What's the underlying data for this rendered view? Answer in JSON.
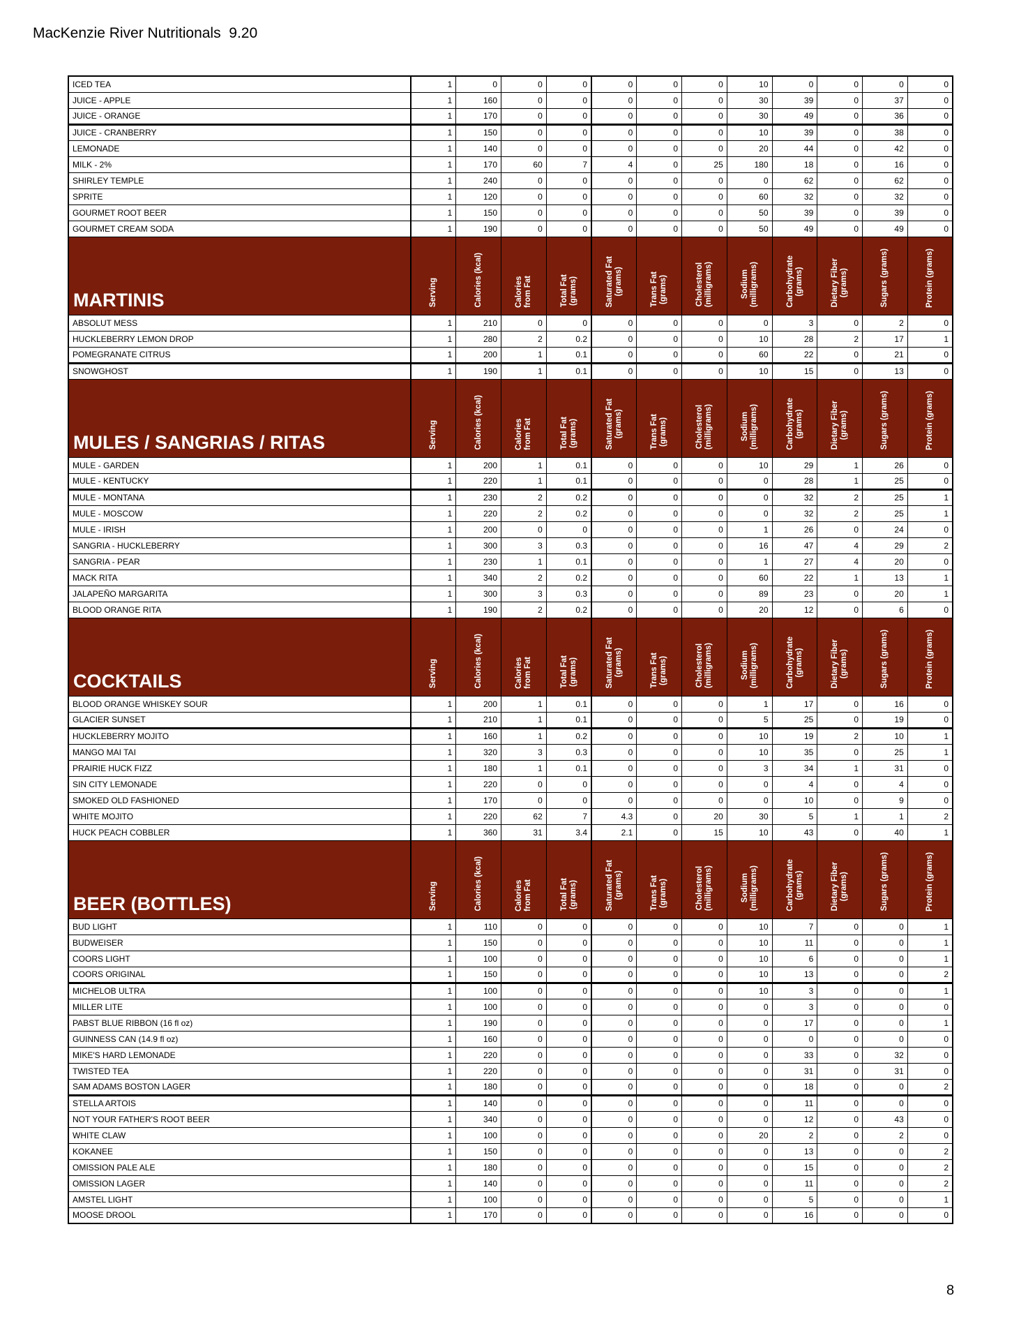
{
  "page": {
    "title": "MacKenzie River Nutritionals  9.20",
    "page_number": "8",
    "accent_color": "#7a1d0b"
  },
  "table": {
    "columns": [
      "Serving",
      "Calories (kcal)",
      "Calories\nfrom Fat",
      "Total Fat\n(grams)",
      "Saturated Fat\n(grams)",
      "Trans Fat\n(grams)",
      "Cholesterol\n(milligrams)",
      "Sodium\n(milligrams)",
      "Carbohydrate\n(grams)",
      "Dietary Fiber\n(grams)",
      "Sugars (grams)",
      "Protein (grams)"
    ],
    "sections": [
      {
        "title": "",
        "rows": [
          {
            "name": "ICED TEA",
            "values": [
              1,
              0,
              0,
              0,
              0,
              0,
              0,
              10,
              0,
              0,
              0,
              0
            ]
          },
          {
            "name": "JUICE - APPLE",
            "values": [
              1,
              160,
              0,
              0,
              0,
              0,
              0,
              30,
              39,
              0,
              37,
              0
            ]
          },
          {
            "name": "JUICE - ORANGE",
            "values": [
              1,
              170,
              0,
              0,
              0,
              0,
              0,
              30,
              49,
              0,
              36,
              0
            ],
            "thick_bottom": true
          },
          {
            "name": "JUICE - CRANBERRY",
            "values": [
              1,
              150,
              0,
              0,
              0,
              0,
              0,
              10,
              39,
              0,
              38,
              0
            ]
          },
          {
            "name": "LEMONADE",
            "values": [
              1,
              140,
              0,
              0,
              0,
              0,
              0,
              20,
              44,
              0,
              42,
              0
            ]
          },
          {
            "name": "MILK - 2%",
            "values": [
              1,
              170,
              60,
              7,
              4,
              0,
              25,
              180,
              18,
              0,
              16,
              0
            ]
          },
          {
            "name": "SHIRLEY TEMPLE",
            "values": [
              1,
              240,
              0,
              0,
              0,
              0,
              0,
              0,
              62,
              0,
              62,
              0
            ]
          },
          {
            "name": "SPRITE",
            "values": [
              1,
              120,
              0,
              0,
              0,
              0,
              0,
              60,
              32,
              0,
              32,
              0
            ]
          },
          {
            "name": "GOURMET ROOT BEER",
            "values": [
              1,
              150,
              0,
              0,
              0,
              0,
              0,
              50,
              39,
              0,
              39,
              0
            ]
          },
          {
            "name": "GOURMET  CREAM SODA",
            "values": [
              1,
              190,
              0,
              0,
              0,
              0,
              0,
              50,
              49,
              0,
              49,
              0
            ]
          }
        ]
      },
      {
        "title": "MARTINIS",
        "rows": [
          {
            "name": "ABSOLUT MESS",
            "values": [
              1,
              210,
              0,
              0,
              0,
              0,
              0,
              0,
              3,
              0,
              2,
              0
            ]
          },
          {
            "name": "HUCKLEBERRY LEMON DROP",
            "values": [
              1,
              280,
              2,
              0.2,
              0,
              0,
              0,
              10,
              28,
              2,
              17,
              1
            ]
          },
          {
            "name": "POMEGRANATE CITRUS",
            "values": [
              1,
              200,
              1,
              0.1,
              0,
              0,
              0,
              60,
              22,
              0,
              21,
              0
            ],
            "thick_bottom": true
          },
          {
            "name": "SNOWGHOST",
            "values": [
              1,
              190,
              1,
              0.1,
              0,
              0,
              0,
              10,
              15,
              0,
              13,
              0
            ]
          }
        ]
      },
      {
        "title": "MULES / SANGRIAS / RITAS",
        "rows": [
          {
            "name": "MULE - GARDEN",
            "values": [
              1,
              200,
              1,
              0.1,
              0,
              0,
              0,
              10,
              29,
              1,
              26,
              0
            ]
          },
          {
            "name": "MULE - KENTUCKY",
            "values": [
              1,
              220,
              1,
              0.1,
              0,
              0,
              0,
              0,
              28,
              1,
              25,
              0
            ],
            "thick_bottom": true
          },
          {
            "name": "MULE - MONTANA",
            "values": [
              1,
              230,
              2,
              0.2,
              0,
              0,
              0,
              0,
              32,
              2,
              25,
              1
            ]
          },
          {
            "name": "MULE - MOSCOW",
            "values": [
              1,
              220,
              2,
              0.2,
              0,
              0,
              0,
              0,
              32,
              2,
              25,
              1
            ]
          },
          {
            "name": "MULE - IRISH",
            "values": [
              1,
              200,
              0,
              0,
              0,
              0,
              0,
              1,
              26,
              0,
              24,
              0
            ]
          },
          {
            "name": "SANGRIA - HUCKLEBERRY",
            "values": [
              1,
              300,
              3,
              0.3,
              0,
              0,
              0,
              16,
              47,
              4,
              29,
              2
            ]
          },
          {
            "name": "SANGRIA - PEAR",
            "values": [
              1,
              230,
              1,
              0.1,
              0,
              0,
              0,
              1,
              27,
              4,
              20,
              0
            ]
          },
          {
            "name": "MACK RITA",
            "values": [
              1,
              340,
              2,
              0.2,
              0,
              0,
              0,
              60,
              22,
              1,
              13,
              1
            ]
          },
          {
            "name": "JALAPEÑO MARGARITA",
            "values": [
              1,
              300,
              3,
              0.3,
              0,
              0,
              0,
              89,
              23,
              0,
              20,
              1
            ]
          },
          {
            "name": "BLOOD ORANGE RITA",
            "values": [
              1,
              190,
              2,
              0.2,
              0,
              0,
              0,
              20,
              12,
              0,
              6,
              0
            ]
          }
        ]
      },
      {
        "title": "COCKTAILS",
        "rows": [
          {
            "name": "BLOOD ORANGE WHISKEY SOUR",
            "values": [
              1,
              200,
              1,
              0.1,
              0,
              0,
              0,
              1,
              17,
              0,
              16,
              0
            ]
          },
          {
            "name": "GLACIER SUNSET",
            "values": [
              1,
              210,
              1,
              0.1,
              0,
              0,
              0,
              5,
              25,
              0,
              19,
              0
            ],
            "thick_bottom": true
          },
          {
            "name": "HUCKLEBERRY MOJITO",
            "values": [
              1,
              160,
              1,
              0.2,
              0,
              0,
              0,
              10,
              19,
              2,
              10,
              1
            ]
          },
          {
            "name": "MANGO MAI TAI",
            "values": [
              1,
              320,
              3,
              0.3,
              0,
              0,
              0,
              10,
              35,
              0,
              25,
              1
            ]
          },
          {
            "name": "PRAIRIE HUCK FIZZ",
            "values": [
              1,
              180,
              1,
              0.1,
              0,
              0,
              0,
              3,
              34,
              1,
              31,
              0
            ]
          },
          {
            "name": "SIN CITY LEMONADE",
            "values": [
              1,
              220,
              0,
              0,
              0,
              0,
              0,
              0,
              4,
              0,
              4,
              0
            ]
          },
          {
            "name": "SMOKED OLD FASHIONED",
            "values": [
              1,
              170,
              0,
              0,
              0,
              0,
              0,
              0,
              10,
              0,
              9,
              0
            ]
          },
          {
            "name": "WHITE MOJITO",
            "values": [
              1,
              220,
              62,
              7,
              4.3,
              0,
              20,
              30,
              5,
              1,
              1,
              2
            ]
          },
          {
            "name": "HUCK PEACH COBBLER",
            "values": [
              1,
              360,
              31,
              3.4,
              2.1,
              0,
              15,
              10,
              43,
              0,
              40,
              1
            ]
          }
        ]
      },
      {
        "title": "BEER (BOTTLES)",
        "rows": [
          {
            "name": "BUD LIGHT",
            "values": [
              1,
              110,
              0,
              0,
              0,
              0,
              0,
              10,
              7,
              0,
              0,
              1
            ]
          },
          {
            "name": "BUDWEISER",
            "values": [
              1,
              150,
              0,
              0,
              0,
              0,
              0,
              10,
              11,
              0,
              0,
              1
            ]
          },
          {
            "name": "COORS LIGHT",
            "values": [
              1,
              100,
              0,
              0,
              0,
              0,
              0,
              10,
              6,
              0,
              0,
              1
            ]
          },
          {
            "name": "COORS ORIGINAL",
            "values": [
              1,
              150,
              0,
              0,
              0,
              0,
              0,
              10,
              13,
              0,
              0,
              2
            ],
            "thick_bottom": true
          },
          {
            "name": "MICHELOB ULTRA",
            "values": [
              1,
              100,
              0,
              0,
              0,
              0,
              0,
              10,
              3,
              0,
              0,
              1
            ]
          },
          {
            "name": "MILLER LITE",
            "values": [
              1,
              100,
              0,
              0,
              0,
              0,
              0,
              0,
              3,
              0,
              0,
              0
            ]
          },
          {
            "name": "PABST BLUE RIBBON (16 fl oz)",
            "values": [
              1,
              190,
              0,
              0,
              0,
              0,
              0,
              0,
              17,
              0,
              0,
              1
            ]
          },
          {
            "name": "GUINNESS CAN (14.9 fl oz)",
            "values": [
              1,
              160,
              0,
              0,
              0,
              0,
              0,
              0,
              0,
              0,
              0,
              0
            ]
          },
          {
            "name": "MIKE'S HARD LEMONADE",
            "values": [
              1,
              220,
              0,
              0,
              0,
              0,
              0,
              0,
              33,
              0,
              32,
              0
            ]
          },
          {
            "name": "TWISTED TEA",
            "values": [
              1,
              220,
              0,
              0,
              0,
              0,
              0,
              0,
              31,
              0,
              31,
              0
            ]
          },
          {
            "name": "SAM ADAMS BOSTON LAGER",
            "values": [
              1,
              180,
              0,
              0,
              0,
              0,
              0,
              0,
              18,
              0,
              0,
              2
            ],
            "thick_bottom": true
          },
          {
            "name": "STELLA ARTOIS",
            "values": [
              1,
              140,
              0,
              0,
              0,
              0,
              0,
              0,
              11,
              0,
              0,
              0
            ]
          },
          {
            "name": "NOT YOUR FATHER'S ROOT BEER",
            "values": [
              1,
              340,
              0,
              0,
              0,
              0,
              0,
              0,
              12,
              0,
              43,
              0
            ]
          },
          {
            "name": "WHITE CLAW",
            "values": [
              1,
              100,
              0,
              0,
              0,
              0,
              0,
              20,
              2,
              0,
              2,
              0
            ]
          },
          {
            "name": "KOKANEE",
            "values": [
              1,
              150,
              0,
              0,
              0,
              0,
              0,
              0,
              13,
              0,
              0,
              2
            ]
          },
          {
            "name": "OMISSION PALE ALE",
            "values": [
              1,
              180,
              0,
              0,
              0,
              0,
              0,
              0,
              15,
              0,
              0,
              2
            ]
          },
          {
            "name": "OMISSION LAGER",
            "values": [
              1,
              140,
              0,
              0,
              0,
              0,
              0,
              0,
              11,
              0,
              0,
              2
            ]
          },
          {
            "name": "AMSTEL LIGHT",
            "values": [
              1,
              100,
              0,
              0,
              0,
              0,
              0,
              0,
              5,
              0,
              0,
              1
            ]
          },
          {
            "name": "MOOSE DROOL",
            "values": [
              1,
              170,
              0,
              0,
              0,
              0,
              0,
              0,
              16,
              0,
              0,
              0
            ]
          }
        ]
      }
    ]
  }
}
